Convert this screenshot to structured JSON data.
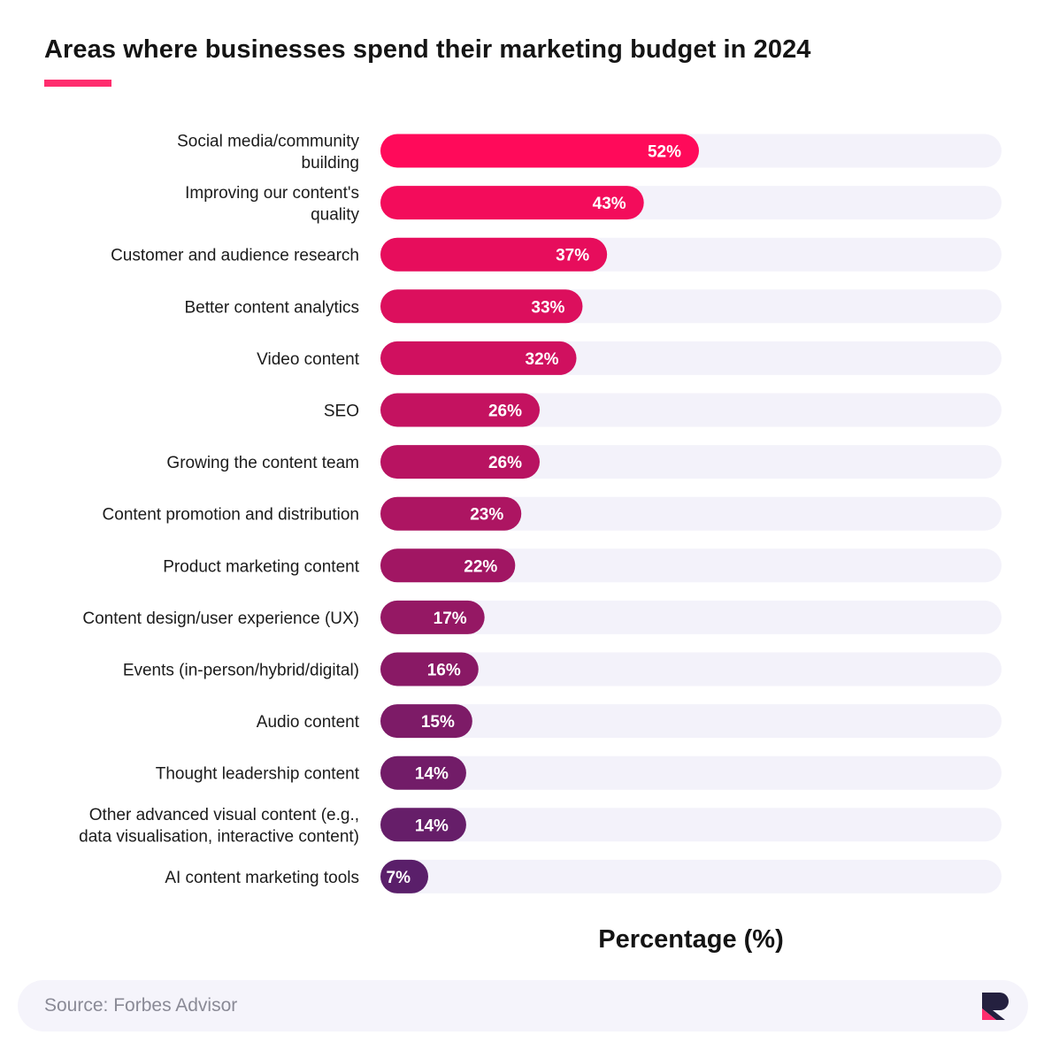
{
  "title": "Areas where businesses spend their marketing budget in 2024",
  "colors": {
    "accent": "#ff2d6e",
    "track": "#f3f2fa",
    "bar_gradient": [
      "#ff0a5a",
      "#5a1f6a"
    ]
  },
  "chart_data": {
    "type": "bar",
    "orientation": "horizontal",
    "categories": [
      [
        "Social media/community",
        "building"
      ],
      [
        "Improving our content's",
        "quality"
      ],
      [
        "Customer and audience research"
      ],
      [
        "Better content analytics"
      ],
      [
        "Video content"
      ],
      [
        "SEO"
      ],
      [
        "Growing the content team"
      ],
      [
        "Content promotion and distribution"
      ],
      [
        "Product marketing content"
      ],
      [
        "Content design/user experience (UX)"
      ],
      [
        "Events (in-person/hybrid/digital)"
      ],
      [
        "Audio content"
      ],
      [
        "Thought leadership content"
      ],
      [
        "Other advanced visual content (e.g.,",
        "data visualisation, interactive content)"
      ],
      [
        "AI content marketing tools"
      ]
    ],
    "values": [
      52,
      43,
      37,
      33,
      32,
      26,
      26,
      23,
      22,
      17,
      16,
      15,
      14,
      14,
      7
    ],
    "value_labels": [
      "52%",
      "43%",
      "37%",
      "33%",
      "32%",
      "26%",
      "26%",
      "23%",
      "22%",
      "17%",
      "16%",
      "15%",
      "14%",
      "14%",
      "7%"
    ],
    "xlabel": "Percentage (%)",
    "ylabel": "",
    "xlim": [
      0,
      100
    ],
    "grid": false,
    "legend": "none"
  },
  "footer": {
    "source": "Source: Forbes Advisor",
    "logo_icon": "brand-logo-icon"
  }
}
